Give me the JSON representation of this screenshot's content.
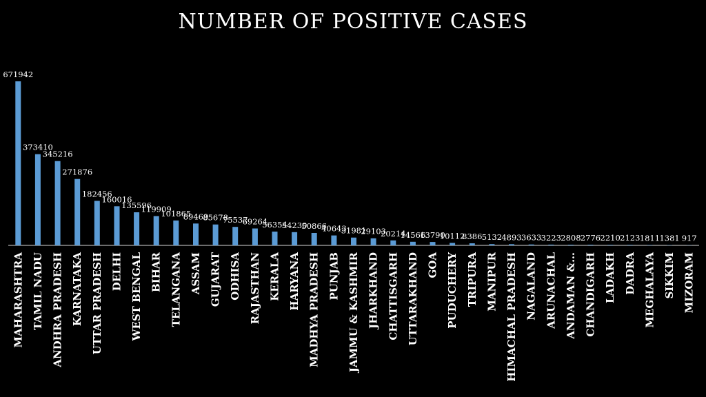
{
  "chart_data": {
    "type": "bar",
    "title": "NUMBER OF POSITIVE CASES",
    "xlabel": "",
    "ylabel": "",
    "ylim": [
      0,
      680000
    ],
    "grid": false,
    "legend": "none",
    "colors": {
      "bar": "#5b9bd5",
      "background": "#000000",
      "text": "#ffffff",
      "axis": "#d9d9d9"
    },
    "categories": [
      "MAHARASHTRA",
      "TAMIL NADU",
      "ANDHRA PRADESH",
      "KARNATAKA",
      "UTTAR PRADESH",
      "DELHI",
      "WEST BENGAL",
      "BIHAR",
      "TELANGANA",
      "ASSAM",
      "GUJARAT",
      "ODHISA",
      "RAJASTHAN",
      "KERALA",
      "HARYANA",
      "MADHYA PRADESH",
      "PUNJAB",
      "JAMMU & KASHMIR",
      "JHARKHAND",
      "CHATTISGARH",
      "UTTARAKHAND",
      "GOA",
      "PUDUCHERY",
      "TRIPURA",
      "MANIPUR",
      "HIMACHAL PRADESH",
      "NAGALAND",
      "ARUNACHAL",
      "ANDAMAN &…",
      "CHANDIGARH",
      "LADAKH",
      "DADRA",
      "MEGHALAYA",
      "SIKKIM",
      "MIZORAM"
    ],
    "values": [
      671942,
      373410,
      345216,
      271876,
      182456,
      160016,
      135596,
      119909,
      101865,
      89469,
      85678,
      75537,
      69264,
      56354,
      54230,
      50866,
      40643,
      31981,
      29103,
      20214,
      14566,
      13790,
      10112,
      8386,
      5132,
      4893,
      3633,
      3223,
      2808,
      2776,
      2210,
      2123,
      1811,
      1381,
      917
    ]
  }
}
